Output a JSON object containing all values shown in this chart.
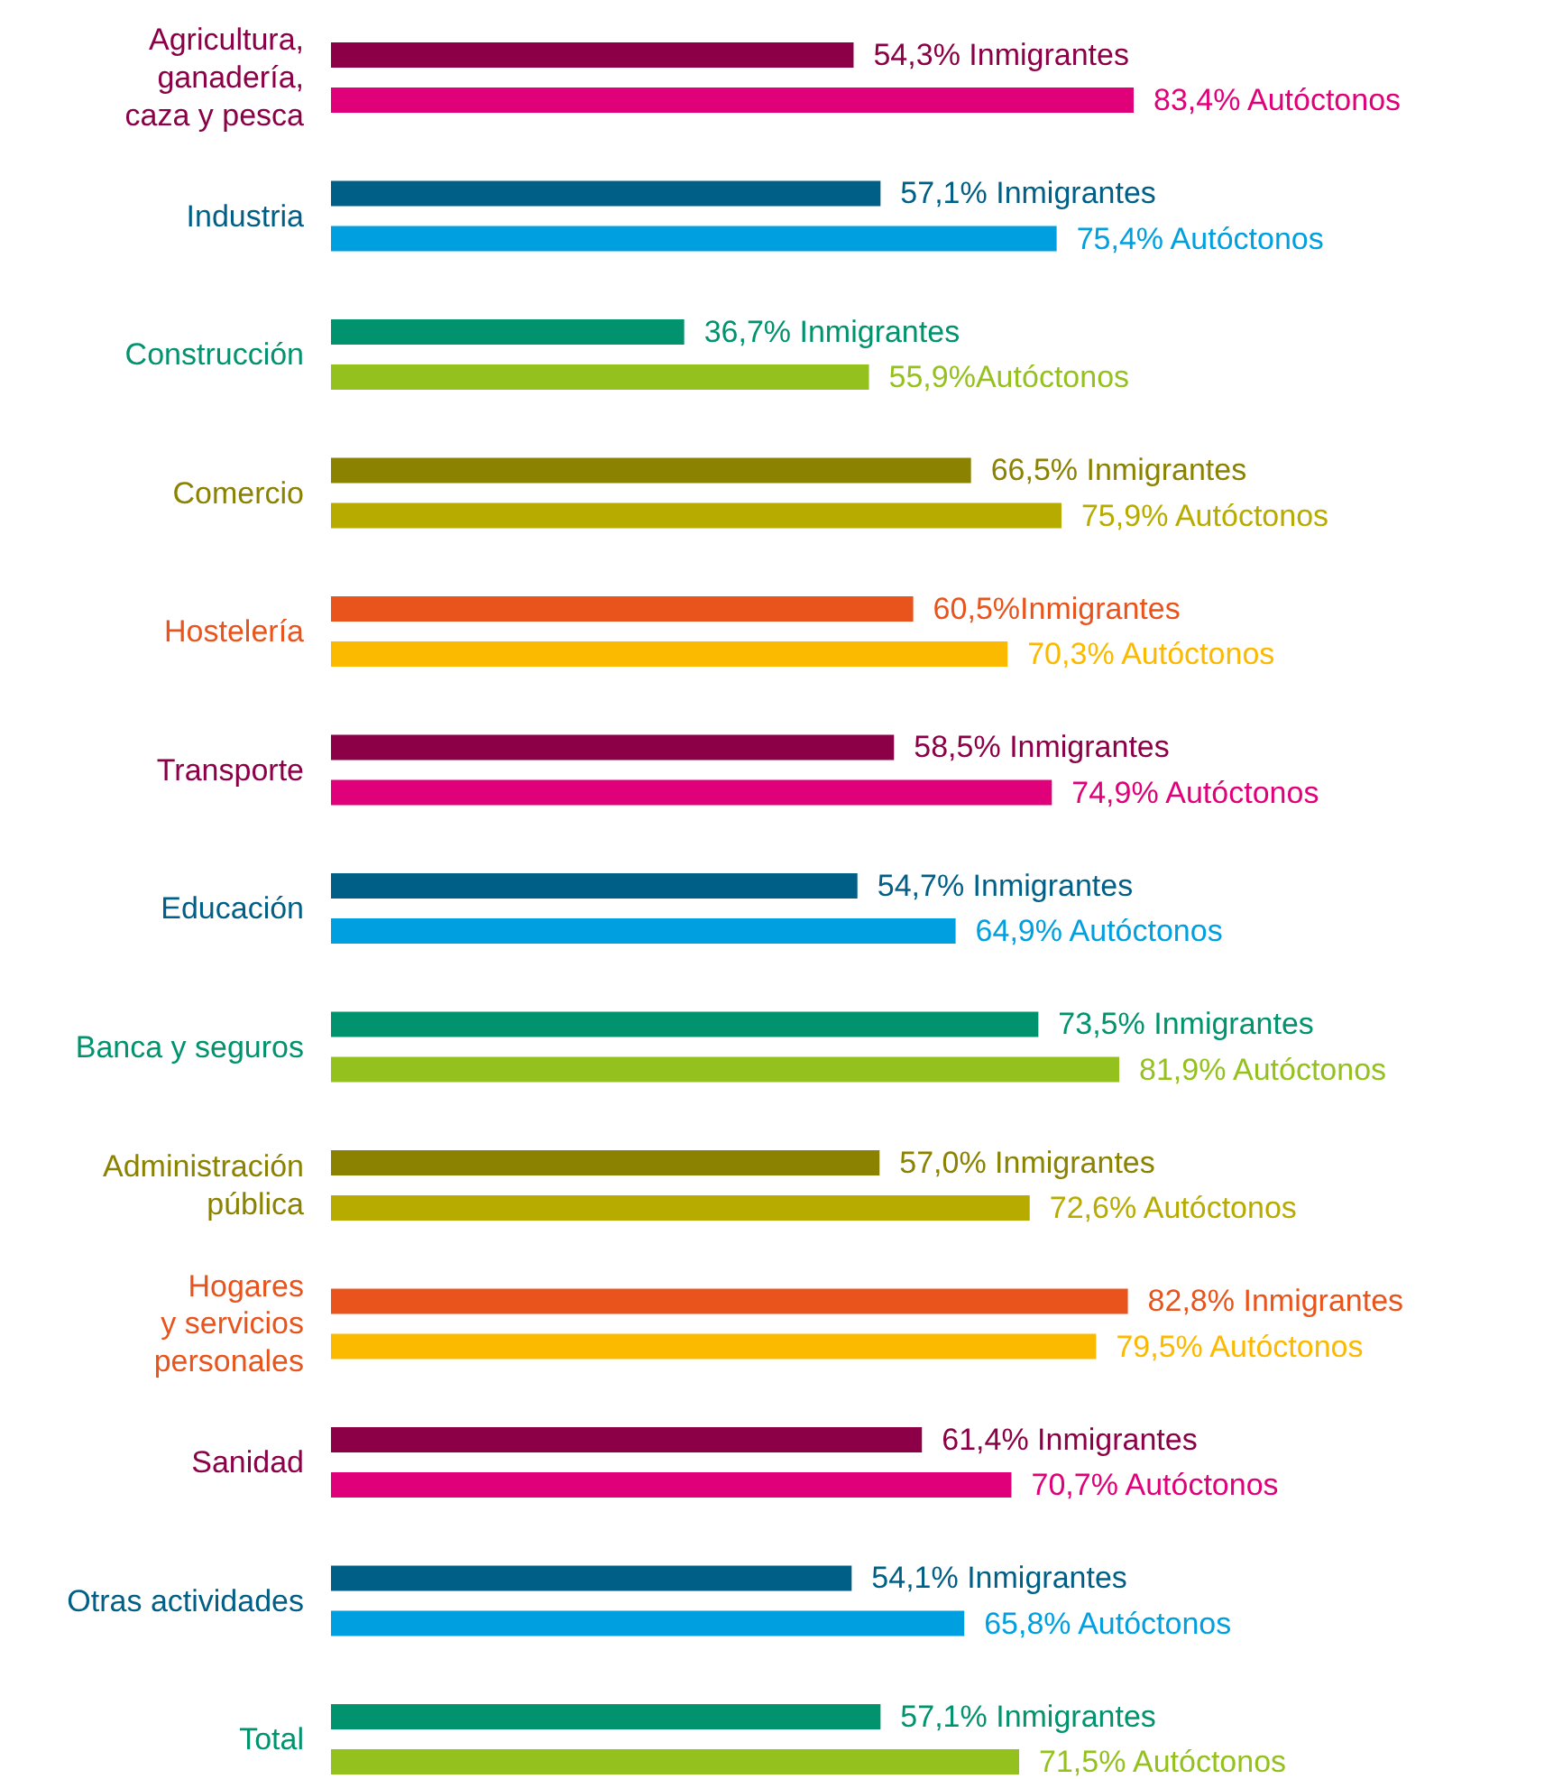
{
  "chart_data": {
    "type": "bar",
    "orientation": "horizontal",
    "categories": [
      "Agricultura,\nganadería,\ncaza y pesca",
      "Industria",
      "Construcción",
      "Comercio",
      "Hostelería",
      "Transporte",
      "Educación",
      "Banca y seguros",
      "Administración\npública",
      "Hogares\ny servicios\npersonales",
      "Sanidad",
      "Otras actividades",
      "Total"
    ],
    "series": [
      {
        "colors": [
          "#8b0046",
          "#005f87",
          "#00936e",
          "#8a8200",
          "#e8541c",
          "#8b0046",
          "#005f87",
          "#00936e",
          "#8a8200",
          "#e8541c",
          "#8b0046",
          "#005f87",
          "#00936e"
        ],
        "values": [
          54.3,
          57.1,
          36.7,
          66.5,
          60.5,
          58.5,
          54.7,
          73.5,
          57.0,
          82.8,
          61.4,
          54.1,
          57.1
        ],
        "value_labels": [
          "54,3% Inmigrantes",
          "57,1% Inmigrantes",
          "36,7% Inmigrantes",
          "66,5% Inmigrantes",
          "60,5%Inmigrantes",
          "58,5% Inmigrantes",
          "54,7% Inmigrantes",
          "73,5% Inmigrantes",
          "57,0% Inmigrantes",
          "82,8% Inmigrantes",
          "61,4% Inmigrantes",
          "54,1% Inmigrantes",
          "57,1% Inmigrantes"
        ]
      },
      {
        "colors": [
          "#e0007a",
          "#00a0e0",
          "#95c11f",
          "#b8ab00",
          "#fbb900",
          "#e0007a",
          "#00a0e0",
          "#95c11f",
          "#b8ab00",
          "#fbb900",
          "#e0007a",
          "#00a0e0",
          "#95c11f"
        ],
        "values": [
          83.4,
          75.4,
          55.9,
          75.9,
          70.3,
          74.9,
          64.9,
          81.9,
          72.6,
          79.5,
          70.7,
          65.8,
          71.5
        ],
        "value_labels": [
          "83,4% Autóctonos",
          "75,4% Autóctonos",
          "55,9%Autóctonos",
          "75,9% Autóctonos",
          "70,3% Autóctonos",
          "74,9% Autóctonos",
          "64,9% Autóctonos",
          "81,9% Autóctonos",
          "72,6% Autóctonos",
          "79,5% Autóctonos",
          "70,7% Autóctonos",
          "65,8% Autóctonos",
          "71,5% Autóctonos"
        ]
      }
    ]
  }
}
